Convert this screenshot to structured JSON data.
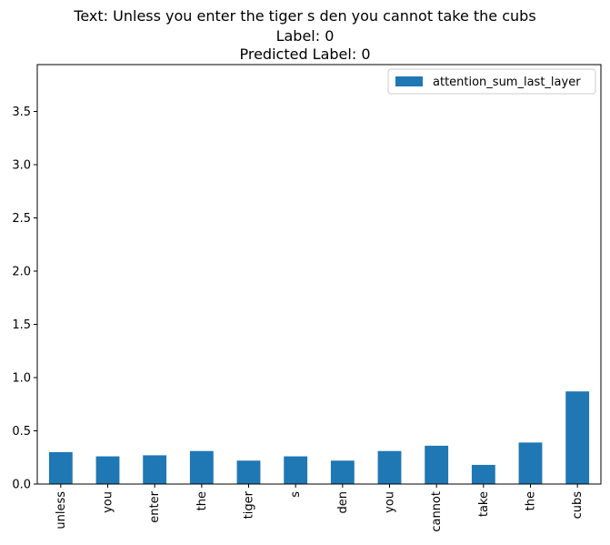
{
  "chart_data": {
    "type": "bar",
    "title_lines": [
      "Text: Unless you enter the tiger s den you cannot take the cubs",
      "Label: 0",
      "Predicted Label: 0"
    ],
    "xlabel": "",
    "ylabel": "",
    "categories": [
      "unless",
      "you",
      "enter",
      "the",
      "tiger",
      "s",
      "den",
      "you",
      "cannot",
      "take",
      "the",
      "cubs"
    ],
    "series": [
      {
        "name": "attention_sum_last_layer",
        "color": "#1f77b4",
        "values": [
          0.3,
          0.26,
          0.27,
          0.31,
          0.22,
          0.26,
          0.22,
          0.31,
          0.36,
          0.18,
          0.39,
          0.87
        ]
      }
    ],
    "ylim": [
      0,
      3.94
    ],
    "yticks": [
      "0.0",
      "0.5",
      "1.0",
      "1.5",
      "2.0",
      "2.5",
      "3.0",
      "3.5"
    ],
    "ytick_values": [
      0,
      0.5,
      1.0,
      1.5,
      2.0,
      2.5,
      3.0,
      3.5
    ],
    "grid": false,
    "legend_position": "top-right"
  }
}
